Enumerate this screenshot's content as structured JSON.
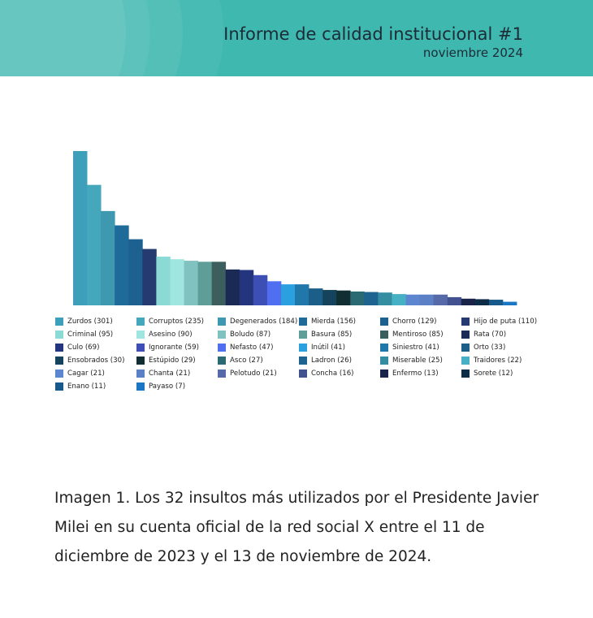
{
  "header": {
    "title": "Informe de calidad institucional #1",
    "subtitle": "noviembre 2024"
  },
  "chart_data": {
    "type": "bar",
    "title": "",
    "xlabel": "",
    "ylabel": "",
    "ylim": [
      0,
      301
    ],
    "grid": false,
    "legend_position": "bottom",
    "categories": [
      "Zurdos",
      "Corruptos",
      "Degenerados",
      "Mierda",
      "Chorro",
      "Hijo de puta",
      "Criminal",
      "Asesino",
      "Boludo",
      "Basura",
      "Mentiroso",
      "Rata",
      "Culo",
      "Ignorante",
      "Nefasto",
      "Inútil",
      "Siniestro",
      "Orto",
      "Ensobrados",
      "Estúpido",
      "Asco",
      "Ladron",
      "Miserable",
      "Traidores",
      "Cagar",
      "Chanta",
      "Pelotudo",
      "Concha",
      "Enfermo",
      "Sorete",
      "Enano",
      "Payaso"
    ],
    "values": [
      301,
      235,
      184,
      156,
      129,
      110,
      95,
      90,
      87,
      85,
      85,
      70,
      69,
      59,
      47,
      41,
      41,
      33,
      30,
      29,
      27,
      26,
      25,
      22,
      21,
      21,
      21,
      16,
      13,
      12,
      11,
      7
    ],
    "legend": [
      "Zurdos (301)",
      "Corruptos  (235)",
      "Degenerados (184)",
      "Mierda (156)",
      "Chorro (129)",
      "Hijo de puta (110)",
      "Criminal (95)",
      "Asesino (90)",
      "Boludo (87)",
      "Basura (85)",
      "Mentiroso (85)",
      "Rata (70)",
      "Culo (69)",
      "Ignorante (59)",
      "Nefasto (47)",
      "Inútil (41)",
      "Siniestro (41)",
      "Orto (33)",
      "Ensobrados (30)",
      "Estúpido  (29)",
      "Asco (27)",
      "Ladron (26)",
      "Miserable (25)",
      "Traidores (22)",
      "Cagar (21)",
      "Chanta (21)",
      "Pelotudo (21)",
      "Concha (16)",
      "Enfermo (13)",
      "Sorete (12)",
      "Enano (11)",
      "Payaso (7)"
    ],
    "colors": [
      "#3d9fba",
      "#44a7bc",
      "#3e98b0",
      "#1e6a99",
      "#1d6191",
      "#253a70",
      "#8cdad6",
      "#9fe6e1",
      "#7fc2bf",
      "#5f9d99",
      "#3c5f5e",
      "#1a2a55",
      "#24357d",
      "#3d4fb4",
      "#4f6ef0",
      "#2aa0e0",
      "#1f77aa",
      "#1b5f88",
      "#16435c",
      "#112f33",
      "#2b6a73",
      "#1f6490",
      "#348da1",
      "#46b1c4",
      "#5d86d0",
      "#5c80c5",
      "#5669a8",
      "#425291",
      "#1a2349",
      "#0d2c45",
      "#17598a",
      "#1b77c4"
    ]
  },
  "caption": "Imagen 1. Los 32 insultos más utilizados por el Presidente Javier Milei en su cuenta oficial de la red social X entre el 11 de diciembre de 2023 y el 13 de noviembre de 2024."
}
